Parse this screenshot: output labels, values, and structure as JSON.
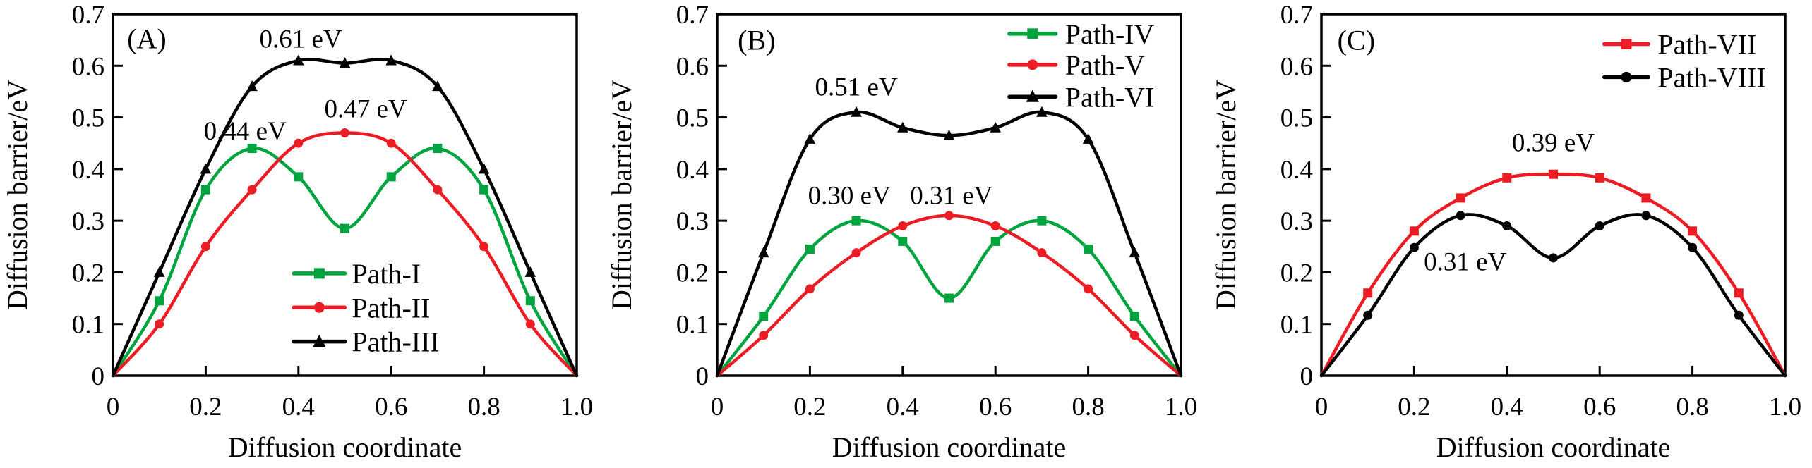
{
  "figure": {
    "background": "#ffffff",
    "axis_color": "#000000",
    "ylabel": "Diffusion barrier/eV",
    "xlabel": "Diffusion coordinate"
  },
  "chart_data": [
    {
      "type": "line",
      "panel_label": "(A)",
      "panel_label_pos": {
        "x": 0.073,
        "y": 0.653
      },
      "xlabel": "Diffusion coordinate",
      "ylabel": "Diffusion barrier/eV",
      "xlim": [
        0,
        1.0
      ],
      "ylim": [
        0,
        0.7
      ],
      "grid": false,
      "xticks": [
        0,
        0.2,
        0.4,
        0.6,
        0.8,
        1.0
      ],
      "xtick_labels": [
        "0",
        "0.2",
        "0.4",
        "0.6",
        "0.8",
        "1.0"
      ],
      "yticks": [
        0,
        0.1,
        0.2,
        0.3,
        0.4,
        0.5,
        0.6,
        0.7
      ],
      "ytick_labels": [
        "0",
        "0.1",
        "0.2",
        "0.3",
        "0.4",
        "0.5",
        "0.6",
        "0.7"
      ],
      "x": [
        0,
        0.1,
        0.2,
        0.3,
        0.4,
        0.5,
        0.6,
        0.7,
        0.8,
        0.9,
        1.0
      ],
      "series": [
        {
          "name": "Path-I",
          "color": "#00a43f",
          "marker": "square",
          "values": [
            0,
            0.145,
            0.36,
            0.44,
            0.385,
            0.285,
            0.385,
            0.44,
            0.36,
            0.145,
            0
          ]
        },
        {
          "name": "Path-II",
          "color": "#ec1c24",
          "marker": "circle",
          "values": [
            0,
            0.1,
            0.25,
            0.36,
            0.45,
            0.47,
            0.45,
            0.36,
            0.25,
            0.1,
            0
          ]
        },
        {
          "name": "Path-III",
          "color": "#000000",
          "marker": "triangle",
          "values": [
            0,
            0.2,
            0.4,
            0.56,
            0.61,
            0.605,
            0.61,
            0.56,
            0.4,
            0.2,
            0
          ]
        }
      ],
      "annotations": [
        {
          "text": "0.44 eV",
          "x": 0.285,
          "y": 0.475
        },
        {
          "text": "0.47 eV",
          "x": 0.545,
          "y": 0.518
        },
        {
          "text": "0.61 eV",
          "x": 0.405,
          "y": 0.653
        }
      ],
      "legend": {
        "position": "inside-lower-middle",
        "x0": 0.39,
        "x1": 0.5,
        "tx": 0.515,
        "rows": [
          0.198,
          0.132,
          0.066
        ]
      }
    },
    {
      "type": "line",
      "panel_label": "(B)",
      "panel_label_pos": {
        "x": 0.085,
        "y": 0.65
      },
      "xlabel": "Diffusion coordinate",
      "ylabel": "Diffusion barrier/eV",
      "xlim": [
        0,
        1.0
      ],
      "ylim": [
        0,
        0.7
      ],
      "grid": false,
      "xticks": [
        0,
        0.2,
        0.4,
        0.6,
        0.8,
        1.0
      ],
      "xtick_labels": [
        "0",
        "0.2",
        "0.4",
        "0.6",
        "0.8",
        "1.0"
      ],
      "yticks": [
        0,
        0.1,
        0.2,
        0.3,
        0.4,
        0.5,
        0.6,
        0.7
      ],
      "ytick_labels": [
        "0",
        "0.1",
        "0.2",
        "0.3",
        "0.4",
        "0.5",
        "0.6",
        "0.7"
      ],
      "x": [
        0,
        0.1,
        0.2,
        0.3,
        0.4,
        0.5,
        0.6,
        0.7,
        0.8,
        0.9,
        1.0
      ],
      "series": [
        {
          "name": "Path-IV",
          "color": "#00a43f",
          "marker": "square",
          "values": [
            0,
            0.115,
            0.245,
            0.3,
            0.26,
            0.15,
            0.26,
            0.3,
            0.245,
            0.115,
            0
          ]
        },
        {
          "name": "Path-V",
          "color": "#ec1c24",
          "marker": "circle",
          "values": [
            0,
            0.078,
            0.168,
            0.238,
            0.29,
            0.31,
            0.29,
            0.238,
            0.168,
            0.078,
            0
          ]
        },
        {
          "name": "Path-VI",
          "color": "#000000",
          "marker": "triangle",
          "values": [
            0,
            0.238,
            0.458,
            0.51,
            0.48,
            0.465,
            0.48,
            0.51,
            0.458,
            0.238,
            0
          ]
        }
      ],
      "annotations": [
        {
          "text": "0.51 eV",
          "x": 0.3,
          "y": 0.56
        },
        {
          "text": "0.30 eV",
          "x": 0.285,
          "y": 0.35
        },
        {
          "text": "0.31 eV",
          "x": 0.505,
          "y": 0.35
        }
      ],
      "legend": {
        "position": "inside-top-right",
        "x0": 0.63,
        "x1": 0.73,
        "tx": 0.75,
        "rows": [
          0.662,
          0.602,
          0.54
        ]
      }
    },
    {
      "type": "line",
      "panel_label": "(C)",
      "panel_label_pos": {
        "x": 0.075,
        "y": 0.65
      },
      "xlabel": "Diffusion coordinate",
      "ylabel": "Diffusion barrier/eV",
      "xlim": [
        0,
        1.0
      ],
      "ylim": [
        0,
        0.7
      ],
      "grid": false,
      "xticks": [
        0,
        0.2,
        0.4,
        0.6,
        0.8,
        1.0
      ],
      "xtick_labels": [
        "0",
        "0.2",
        "0.4",
        "0.6",
        "0.8",
        "1.0"
      ],
      "yticks": [
        0,
        0.1,
        0.2,
        0.3,
        0.4,
        0.5,
        0.6,
        0.7
      ],
      "ytick_labels": [
        "0",
        "0.1",
        "0.2",
        "0.3",
        "0.4",
        "0.5",
        "0.6",
        "0.7"
      ],
      "x": [
        0,
        0.1,
        0.2,
        0.3,
        0.4,
        0.5,
        0.6,
        0.7,
        0.8,
        0.9,
        1.0
      ],
      "series": [
        {
          "name": "Path-VII",
          "color": "#ec1c24",
          "marker": "square",
          "values": [
            0,
            0.16,
            0.28,
            0.344,
            0.383,
            0.39,
            0.383,
            0.344,
            0.28,
            0.16,
            0
          ]
        },
        {
          "name": "Path-VIII",
          "color": "#000000",
          "marker": "circle",
          "values": [
            0,
            0.117,
            0.248,
            0.31,
            0.29,
            0.228,
            0.29,
            0.31,
            0.248,
            0.117,
            0
          ]
        }
      ],
      "annotations": [
        {
          "text": "0.39 eV",
          "x": 0.5,
          "y": 0.452
        },
        {
          "text": "0.31 eV",
          "x": 0.31,
          "y": 0.222
        }
      ],
      "legend": {
        "position": "inside-top-right",
        "x0": 0.61,
        "x1": 0.705,
        "tx": 0.725,
        "rows": [
          0.642,
          0.578
        ]
      }
    }
  ]
}
